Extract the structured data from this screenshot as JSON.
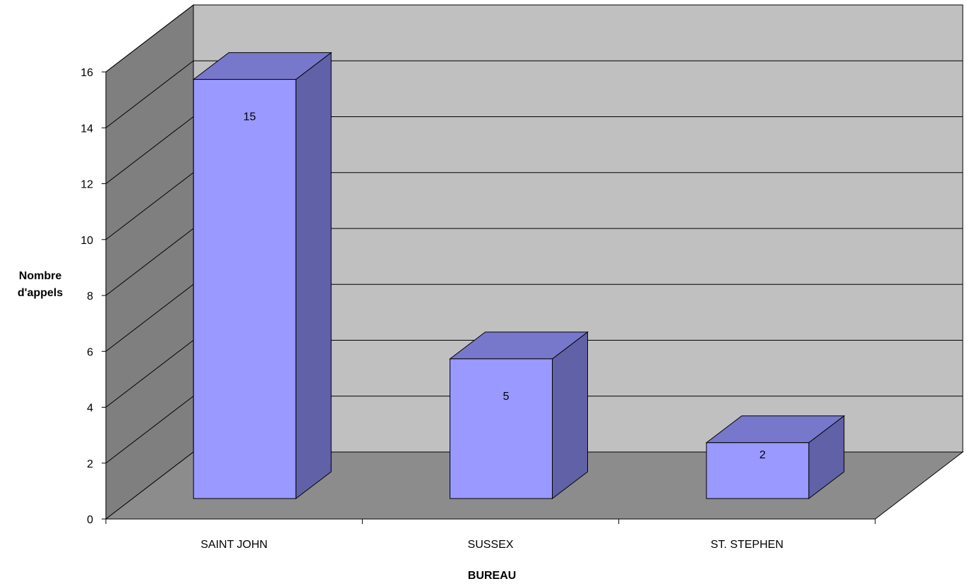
{
  "chart_data": {
    "type": "bar",
    "categories": [
      "SAINT JOHN",
      "SUSSEX",
      "ST. STEPHEN"
    ],
    "values": [
      15,
      5,
      2
    ],
    "title": "",
    "xlabel": "BUREAU",
    "ylabel_lines": [
      "Nombre",
      "d'appels"
    ],
    "ylim": [
      0,
      16
    ],
    "ytick_step": 2,
    "grid": true,
    "three_d": true,
    "data_labels": true,
    "colors": {
      "bar_front": "#9999ff",
      "bar_top": "#7777cc",
      "bar_side": "#6161a8",
      "back_wall": "#c0c0c0",
      "side_wall": "#7f7f7f",
      "floor": "#8c8c8c"
    }
  }
}
